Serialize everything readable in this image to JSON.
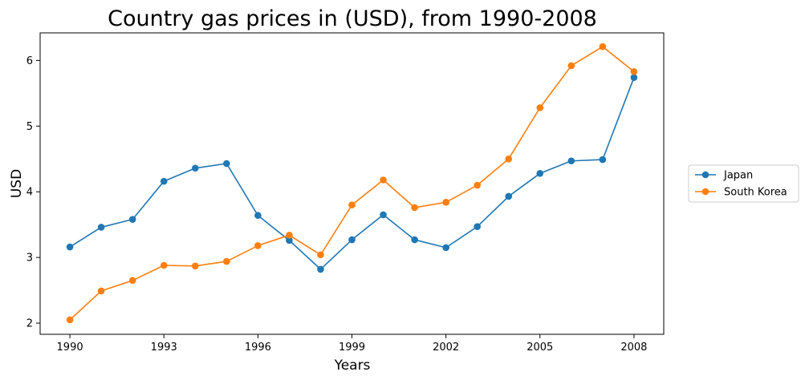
{
  "chart_data": {
    "type": "line",
    "title": "Country gas prices in (USD), from 1990-2008",
    "xlabel": "Years",
    "ylabel": "USD",
    "x": [
      1990,
      1991,
      1992,
      1993,
      1994,
      1995,
      1996,
      1997,
      1998,
      1999,
      2000,
      2001,
      2002,
      2003,
      2004,
      2005,
      2006,
      2007,
      2008
    ],
    "xticks": [
      1990,
      1993,
      1996,
      1999,
      2002,
      2005,
      2008
    ],
    "yticks": [
      2,
      3,
      4,
      5,
      6
    ],
    "xlim": [
      1989.05,
      2008.95
    ],
    "ylim": [
      1.83,
      6.42
    ],
    "grid": false,
    "legend_position": "right-outside",
    "series": [
      {
        "name": "Japan",
        "color": "#1f77b4",
        "values": [
          3.16,
          3.46,
          3.58,
          4.16,
          4.36,
          4.43,
          3.64,
          3.26,
          2.82,
          3.27,
          3.65,
          3.27,
          3.15,
          3.47,
          3.93,
          4.28,
          4.47,
          4.49,
          5.74
        ]
      },
      {
        "name": "South Korea",
        "color": "#ff7f0e",
        "values": [
          2.05,
          2.49,
          2.65,
          2.88,
          2.87,
          2.94,
          3.18,
          3.34,
          3.04,
          3.8,
          4.18,
          3.76,
          3.84,
          4.1,
          4.5,
          5.28,
          5.92,
          6.21,
          5.83
        ]
      }
    ]
  }
}
